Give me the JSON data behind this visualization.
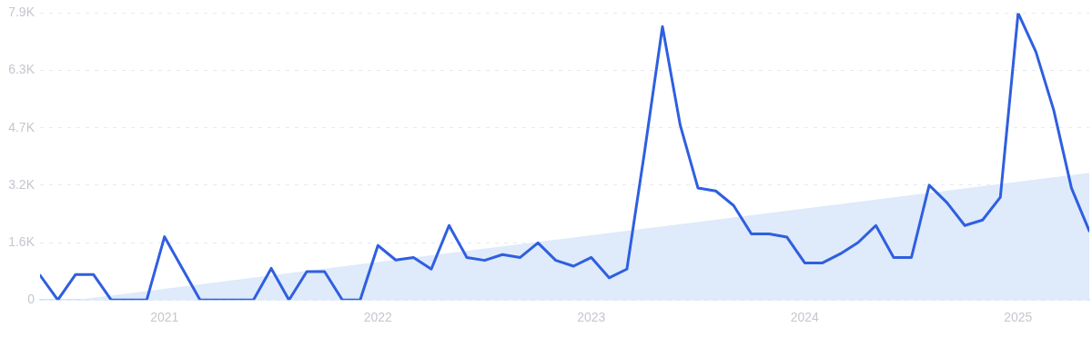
{
  "chart_data": {
    "type": "line",
    "x": [
      "2020-06",
      "2020-07",
      "2020-08",
      "2020-09",
      "2020-10",
      "2020-11",
      "2020-12",
      "2021-01",
      "2021-02",
      "2021-03",
      "2021-04",
      "2021-05",
      "2021-06",
      "2021-07",
      "2021-08",
      "2021-09",
      "2021-10",
      "2021-11",
      "2021-12",
      "2022-01",
      "2022-02",
      "2022-03",
      "2022-04",
      "2022-05",
      "2022-06",
      "2022-07",
      "2022-08",
      "2022-09",
      "2022-10",
      "2022-11",
      "2022-12",
      "2023-01",
      "2023-02",
      "2023-03",
      "2023-04",
      "2023-05",
      "2023-06",
      "2023-07",
      "2023-08",
      "2023-09",
      "2023-10",
      "2023-11",
      "2023-12",
      "2024-01",
      "2024-02",
      "2024-03",
      "2024-04",
      "2024-05",
      "2024-06",
      "2024-07",
      "2024-08",
      "2024-09",
      "2024-10",
      "2024-11",
      "2024-12",
      "2025-01",
      "2025-02",
      "2025-03",
      "2025-04",
      "2025-05"
    ],
    "series": [
      {
        "type": "area",
        "color": "#dfeafa",
        "x": [
          "2020-08",
          "2025-05"
        ],
        "values": [
          0,
          3500
        ]
      },
      {
        "color": "#2f5fe0",
        "values": [
          680,
          0,
          700,
          700,
          0,
          0,
          0,
          1740,
          870,
          0,
          0,
          0,
          0,
          870,
          0,
          780,
          780,
          0,
          0,
          1500,
          1100,
          1170,
          850,
          2050,
          1170,
          1090,
          1250,
          1170,
          1570,
          1090,
          930,
          1170,
          610,
          850,
          4100,
          7530,
          4810,
          3080,
          3000,
          2600,
          1820,
          1820,
          1730,
          1020,
          1020,
          1270,
          1580,
          2050,
          1170,
          1170,
          3160,
          2680,
          2050,
          2200,
          2830,
          7900,
          6830,
          5230,
          3080,
          1900
        ]
      }
    ],
    "xlim": [
      "2020-06",
      "2025-05"
    ],
    "xticks": [
      "2021",
      "2022",
      "2023",
      "2024",
      "2025"
    ],
    "ylim": [
      0,
      7900
    ],
    "yticks": [
      0,
      {
        "value": 1580,
        "label": "1.6K"
      },
      {
        "value": 3160,
        "label": "3.2K"
      },
      {
        "value": 4740,
        "label": "4.7K"
      },
      {
        "value": 6320,
        "label": "6.3K"
      },
      {
        "value": 7900,
        "label": "7.9K"
      }
    ],
    "grid": "y",
    "legend": false,
    "marker": "none",
    "line_style": "solid"
  }
}
